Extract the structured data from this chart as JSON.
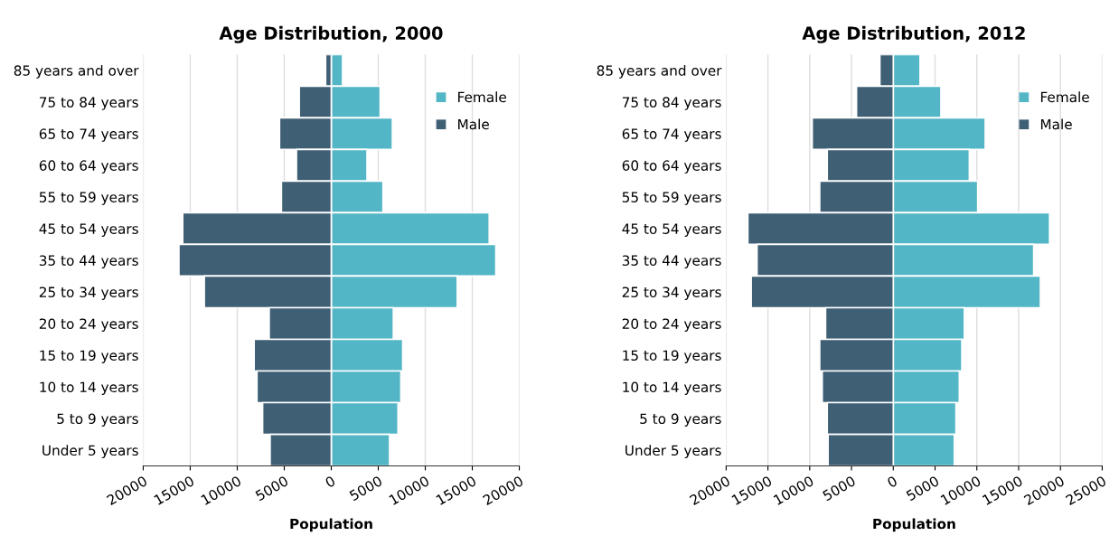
{
  "chart_data": [
    {
      "type": "bar",
      "orientation": "horizontal",
      "title": "Age Distribution, 2000",
      "xlabel": "Population",
      "categories": [
        "85 years and over",
        "75 to 84 years",
        "65 to 74 years",
        "60 to 64 years",
        "55 to 59 years",
        "45 to 54 years",
        "35 to 44 years",
        "25 to 34 years",
        "20 to 24 years",
        "15 to 19 years",
        "10 to 14 years",
        "5 to 9 years",
        "Under 5 years"
      ],
      "series": [
        {
          "name": "Female",
          "color": "#53b6c6",
          "values": [
            1200,
            5200,
            6500,
            3800,
            5500,
            16800,
            17500,
            13400,
            6600,
            7600,
            7400,
            7100,
            6200
          ]
        },
        {
          "name": "Male",
          "color": "#3f5f75",
          "values": [
            -600,
            -3400,
            -5500,
            -3700,
            -5300,
            -15800,
            -16200,
            -13500,
            -6600,
            -8200,
            -7900,
            -7300,
            -6500
          ]
        }
      ],
      "xlim": [
        -20000,
        20000
      ],
      "xticks": [
        {
          "value": -20000,
          "label": "20000"
        },
        {
          "value": -15000,
          "label": "15000"
        },
        {
          "value": -10000,
          "label": "10000"
        },
        {
          "value": -5000,
          "label": "5000"
        },
        0,
        5000,
        10000,
        15000,
        20000
      ],
      "grid": "x",
      "legend": "top right",
      "stacked": true
    },
    {
      "type": "bar",
      "orientation": "horizontal",
      "title": "Age Distribution, 2012",
      "xlabel": "Population",
      "categories": [
        "85 years and over",
        "75 to 84 years",
        "65 to 74 years",
        "60 to 64 years",
        "55 to 59 years",
        "45 to 54 years",
        "35 to 44 years",
        "25 to 34 years",
        "20 to 24 years",
        "15 to 19 years",
        "10 to 14 years",
        "5 to 9 years",
        "Under 5 years"
      ],
      "series": [
        {
          "name": "Female",
          "color": "#53b6c6",
          "values": [
            3200,
            5700,
            11000,
            9100,
            10100,
            18700,
            16800,
            17600,
            8500,
            8200,
            7900,
            7500,
            7300
          ]
        },
        {
          "name": "Male",
          "color": "#3f5f75",
          "values": [
            -1600,
            -4400,
            -9700,
            -7900,
            -8800,
            -17400,
            -16300,
            -17000,
            -8100,
            -8800,
            -8500,
            -7900,
            -7800
          ]
        }
      ],
      "xlim": [
        -20000,
        25000
      ],
      "xticks": [
        {
          "value": -20000,
          "label": "20000"
        },
        {
          "value": -15000,
          "label": "15000"
        },
        {
          "value": -10000,
          "label": "10000"
        },
        {
          "value": -5000,
          "label": "5000"
        },
        0,
        5000,
        10000,
        15000,
        20000,
        25000
      ],
      "grid": "x",
      "legend": "top right",
      "stacked": true
    }
  ]
}
